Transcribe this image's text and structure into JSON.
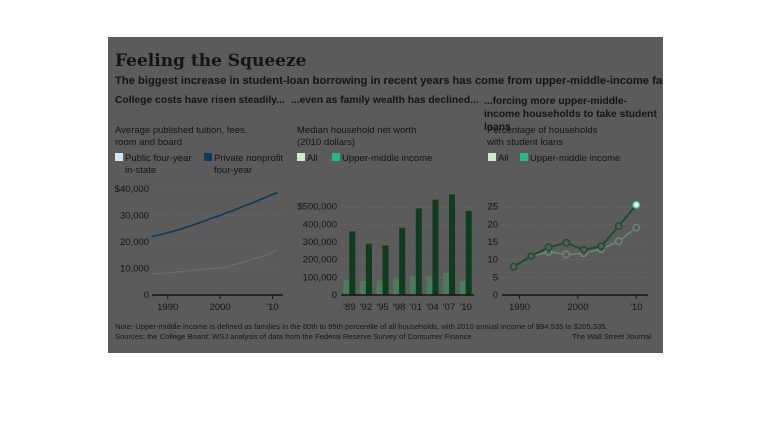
{
  "header": {
    "title": "Feeling the Squeeze",
    "subtitle": "The biggest increase in student-loan borrowing in recent years has come from upper-middle-income families."
  },
  "sections": [
    "College costs have risen steadily...",
    "...even as family wealth has declined...",
    "...forcing more upper-middle-income households to take student loans"
  ],
  "footnote": {
    "note": "Note: Upper-middle income is defined as families in the 80th to 95th percentile of all households, with 2010 annual income of $94,535 to $205,335.",
    "sources": "Sources: the College Board; WSJ analysis of data from the Federal Reserve Survey of Consumer Finance",
    "credit": "The Wall Street Journal"
  },
  "colors": {
    "panel": "#5b5b5b",
    "public": "#1f9ad6",
    "private": "#0b3a5c",
    "all_bar": "#4e7a5a",
    "upper_bar": "#0f3b1f",
    "all_line": "#6e8a76",
    "upper_line": "#154d2a",
    "highlight": "#36c98e"
  },
  "chart_data": [
    {
      "type": "line",
      "title": "Average published tuition, fees, room and board",
      "x": [
        1987,
        1988,
        1989,
        1990,
        1991,
        1992,
        1993,
        1994,
        1995,
        1996,
        1997,
        1998,
        1999,
        2000,
        2001,
        2002,
        2003,
        2004,
        2005,
        2006,
        2007,
        2008,
        2009,
        2010,
        2011
      ],
      "series": [
        {
          "name": "Public four-year in-state",
          "values": [
            8000,
            8100,
            8200,
            8300,
            8500,
            8700,
            8900,
            9100,
            9300,
            9500,
            9700,
            9900,
            10100,
            10300,
            10600,
            11000,
            11600,
            12200,
            12800,
            13400,
            14000,
            14500,
            15200,
            16200,
            17100
          ]
        },
        {
          "name": "Private nonprofit four-year",
          "values": [
            22000,
            22600,
            23000,
            23500,
            24000,
            24600,
            25200,
            25900,
            26500,
            27200,
            27900,
            28700,
            29400,
            30000,
            30900,
            31500,
            32300,
            33100,
            33900,
            34600,
            35400,
            36300,
            37000,
            38000,
            38600
          ]
        }
      ],
      "xticks": [
        "1990",
        "2000",
        "'10"
      ],
      "yticks": [
        "0",
        "10,000",
        "20,000",
        "30,000",
        "$40,000"
      ],
      "xlim": [
        1987,
        2012
      ],
      "ylim": [
        0,
        40000
      ]
    },
    {
      "type": "bar",
      "title": "Median household net worth (2010 dollars)",
      "categories": [
        "'89",
        "'92",
        "'95",
        "'98",
        "'01",
        "'04",
        "'07",
        "'10"
      ],
      "series": [
        {
          "name": "All",
          "values": [
            85000,
            80000,
            82000,
            95000,
            105000,
            105000,
            125000,
            80000
          ]
        },
        {
          "name": "Upper-middle income",
          "values": [
            360000,
            290000,
            280000,
            380000,
            490000,
            540000,
            570000,
            475000
          ]
        }
      ],
      "yticks": [
        "0",
        "100,000",
        "200,000",
        "300,000",
        "400,000",
        "$500,000"
      ],
      "ylim": [
        0,
        600000
      ]
    },
    {
      "type": "line",
      "title": "Percentage of households with student loans",
      "x": [
        1989,
        1992,
        1995,
        1998,
        2001,
        2004,
        2007,
        2010
      ],
      "series": [
        {
          "name": "All",
          "values": [
            8.0,
            11.0,
            12.2,
            11.5,
            11.8,
            13.0,
            15.2,
            19.1
          ]
        },
        {
          "name": "Upper-middle income",
          "values": [
            8.0,
            11.0,
            13.5,
            14.8,
            12.8,
            13.8,
            19.5,
            25.5
          ]
        }
      ],
      "xticks": [
        "1990",
        "2000",
        "'10"
      ],
      "yticks": [
        "0",
        "5",
        "10",
        "15",
        "20",
        "25"
      ],
      "ylim": [
        0,
        30
      ]
    }
  ]
}
